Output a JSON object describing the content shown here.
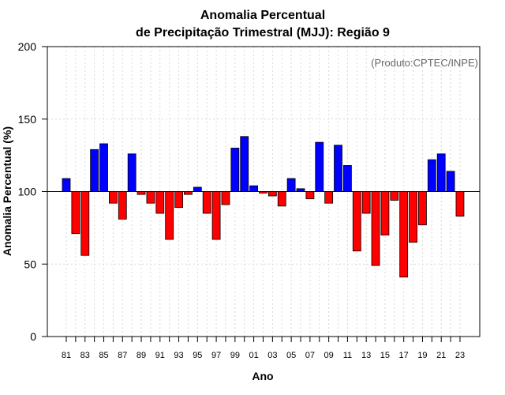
{
  "chart_data": {
    "type": "bar",
    "title_line1": "Anomalia Percentual",
    "title_line2": "de Precipitação Trimestral (MJJ): Região 9",
    "xlabel": "Ano",
    "ylabel": "Anomalia Percentual (%)",
    "credit": "(Produto:CPTEC/INPE)",
    "baseline": 100,
    "ylim": [
      0,
      200
    ],
    "yticks": [
      "0",
      "50",
      "100",
      "150",
      "200"
    ],
    "xtick_labels": [
      "81",
      "83",
      "85",
      "87",
      "89",
      "91",
      "93",
      "95",
      "97",
      "99",
      "01",
      "03",
      "05",
      "07",
      "09",
      "11",
      "13",
      "15",
      "17",
      "19",
      "21",
      "23"
    ],
    "categories": [
      "1981",
      "1982",
      "1983",
      "1984",
      "1985",
      "1986",
      "1987",
      "1988",
      "1989",
      "1990",
      "1991",
      "1992",
      "1993",
      "1994",
      "1995",
      "1996",
      "1997",
      "1998",
      "1999",
      "2000",
      "2001",
      "2002",
      "2003",
      "2004",
      "2005",
      "2006",
      "2007",
      "2008",
      "2009",
      "2010",
      "2011",
      "2012",
      "2013",
      "2014",
      "2015",
      "2016",
      "2017",
      "2018",
      "2019",
      "2020",
      "2021",
      "2022",
      "2023"
    ],
    "values": [
      109,
      71,
      56,
      129,
      133,
      92,
      81,
      126,
      98,
      92,
      85,
      67,
      89,
      98,
      103,
      85,
      67,
      91,
      130,
      138,
      104,
      99,
      97,
      90,
      109,
      102,
      95,
      134,
      92,
      132,
      118,
      59,
      85,
      49,
      70,
      94,
      41,
      65,
      77,
      122,
      126,
      114,
      83
    ],
    "colors": {
      "above": "#0000ff",
      "below": "#ff0000"
    },
    "grid": true
  }
}
